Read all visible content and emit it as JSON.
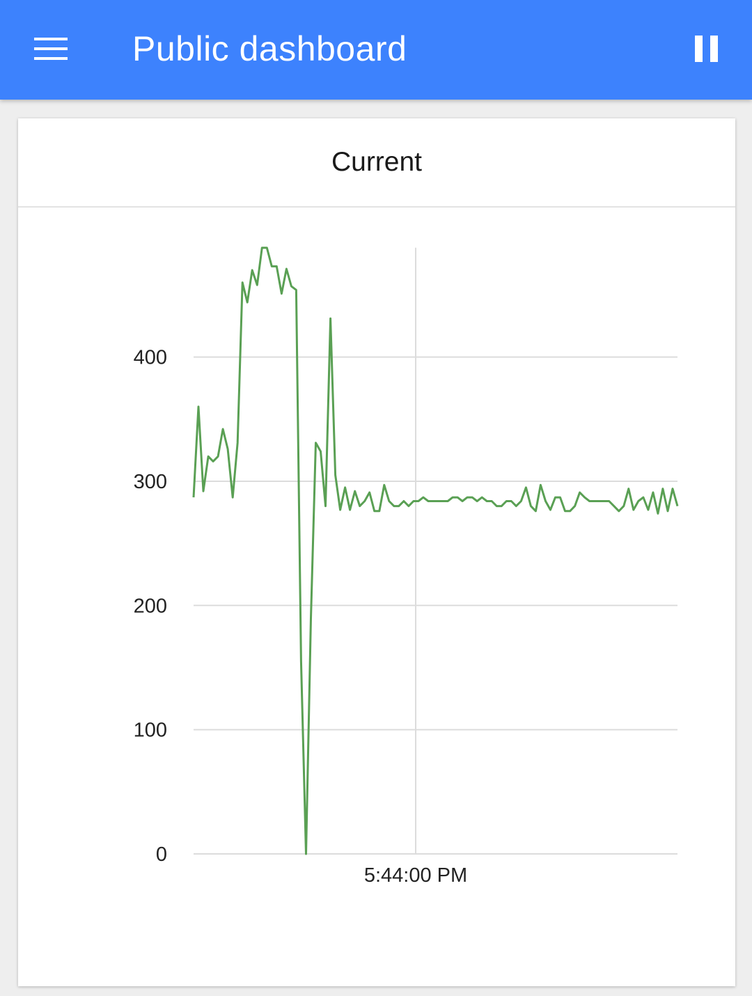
{
  "app_bar": {
    "title": "Public dashboard",
    "menu_icon": "hamburger-menu-icon",
    "pause_icon": "pause-icon",
    "color": "#3d82fd"
  },
  "card": {
    "title": "Current"
  },
  "chart_data": {
    "type": "line",
    "title": "Current",
    "xlabel": "",
    "ylabel": "",
    "ylim": [
      0,
      488
    ],
    "y_ticks": [
      0,
      100,
      200,
      300,
      400
    ],
    "x_tick_label": "5:44:00 PM",
    "grid": true,
    "legend": "none",
    "color": "#5aa054",
    "series": [
      {
        "values": [
          287,
          360,
          292,
          320,
          316,
          320,
          342,
          326,
          287,
          331,
          460,
          444,
          470,
          458,
          488,
          488,
          473,
          473,
          451,
          471,
          457,
          454,
          155,
          0,
          190,
          331,
          324,
          280,
          431,
          305,
          277,
          295,
          277,
          292,
          280,
          284,
          291,
          276,
          276,
          297,
          284,
          280,
          280,
          284,
          280,
          284,
          284,
          287,
          284,
          284,
          284,
          284,
          284,
          287,
          287,
          284,
          287,
          287,
          284,
          287,
          284,
          284,
          280,
          280,
          284,
          284,
          280,
          284,
          295,
          280,
          276,
          297,
          284,
          277,
          287,
          287,
          276,
          276,
          280,
          291,
          287,
          284,
          284,
          284,
          284,
          284,
          280,
          276,
          280,
          294,
          277,
          284,
          287,
          277,
          291,
          274,
          294,
          276,
          294,
          280
        ]
      }
    ]
  }
}
